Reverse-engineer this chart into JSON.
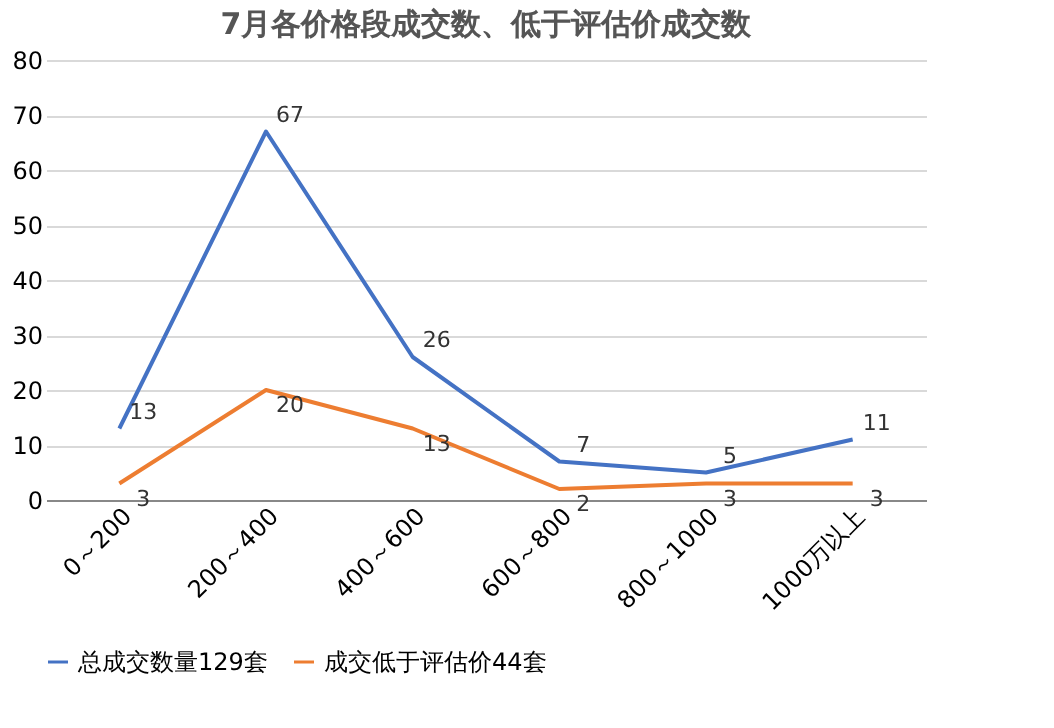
{
  "chart_data": {
    "type": "line",
    "title": "7月各价格段成交数、低于评估价成交数",
    "categories": [
      "0～200",
      "200～400",
      "400～600",
      "600～800",
      "800～1000",
      "1000万以上"
    ],
    "series": [
      {
        "name": "总成交数量129套",
        "color": "#4472c4",
        "values": [
          13,
          67,
          26,
          7,
          5,
          11
        ]
      },
      {
        "name": "成交低于评估价44套",
        "color": "#ed7d31",
        "values": [
          3,
          20,
          13,
          2,
          3,
          3
        ]
      }
    ],
    "ylim": [
      0,
      80
    ],
    "yticks": [
      0,
      10,
      20,
      30,
      40,
      50,
      60,
      70,
      80
    ],
    "grid": "y",
    "legend": "bottom",
    "data_labels": true,
    "marker": "none",
    "line_style": "solid"
  }
}
